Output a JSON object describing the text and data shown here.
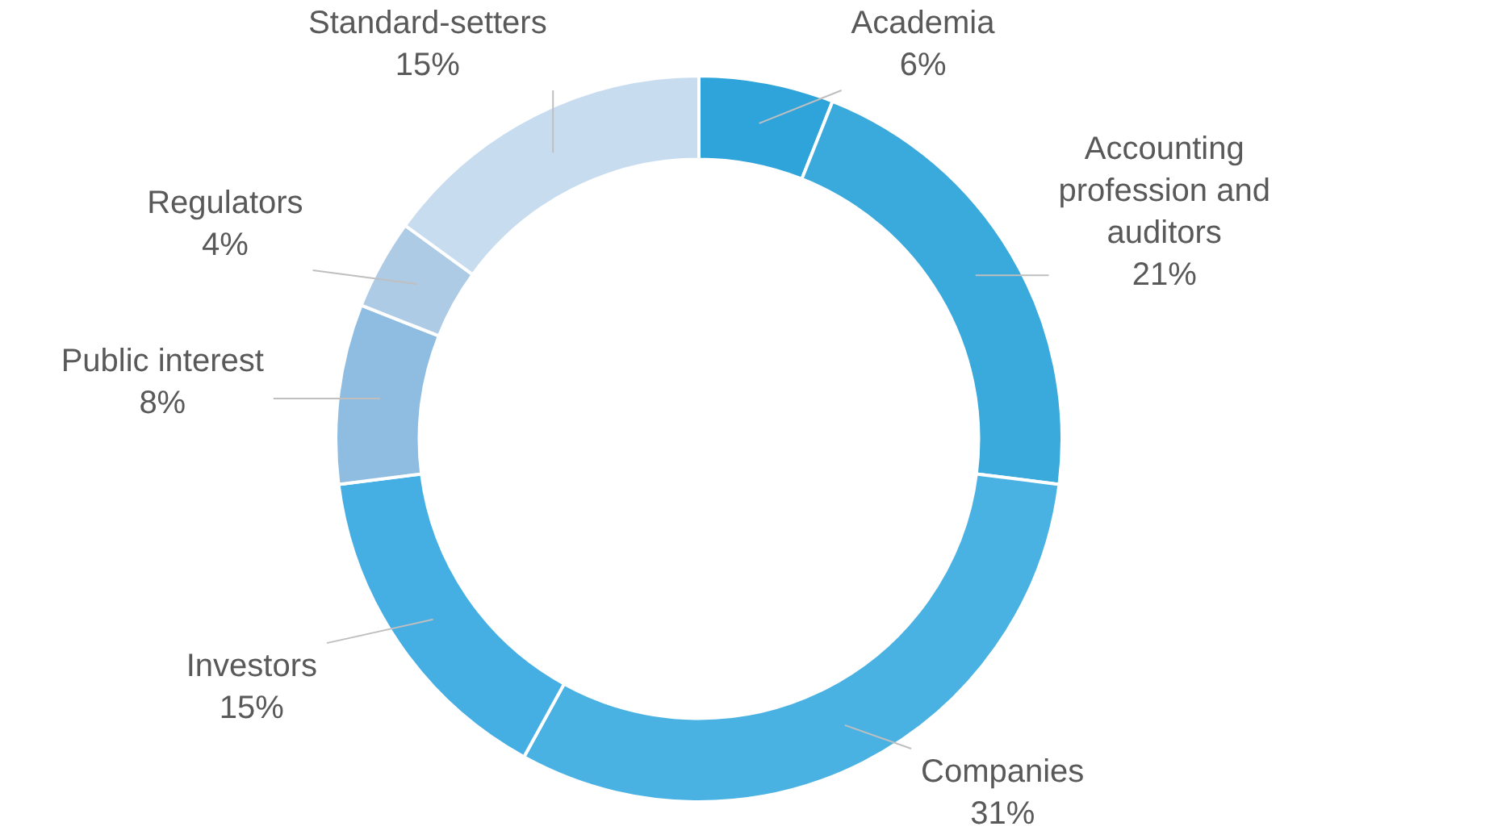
{
  "chart_data": {
    "type": "donut",
    "categories": [
      "Academia",
      "Accounting profession and auditors",
      "Companies",
      "Investors",
      "Public interest",
      "Regulators",
      "Standard-setters"
    ],
    "values": [
      6,
      21,
      31,
      15,
      8,
      4,
      15
    ],
    "value_labels": [
      "6%",
      "21%",
      "31%",
      "15%",
      "8%",
      "4%",
      "15%"
    ],
    "colors": [
      "#2fa4da",
      "#3aa9dc",
      "#4ab2e3",
      "#45aee3",
      "#8fbde2",
      "#aecbe6",
      "#c8dcef"
    ],
    "legend": false
  }
}
